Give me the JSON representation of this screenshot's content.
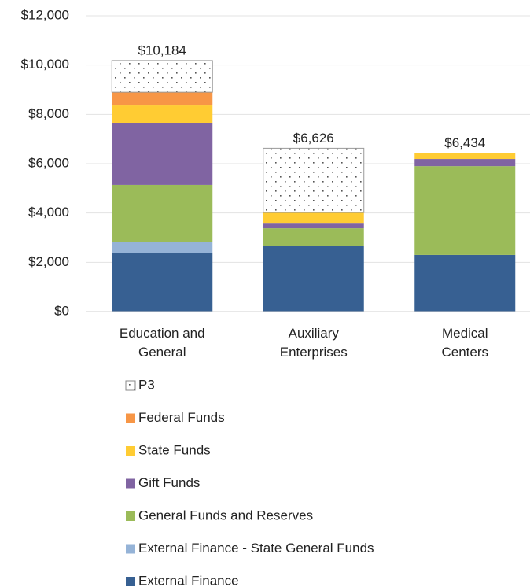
{
  "chart_data": {
    "type": "stacked_bar",
    "categories": [
      "Education and General",
      "Auxiliary Enterprises",
      "Medical Centers"
    ],
    "series": [
      {
        "name": "External Finance",
        "color": "#376092",
        "values": [
          2390,
          2650,
          2300
        ]
      },
      {
        "name": "External Finance - State  General Funds",
        "color": "#95b3d7",
        "values": [
          450,
          0,
          0
        ]
      },
      {
        "name": "General Funds and Reserves",
        "color": "#9bbb59",
        "values": [
          2300,
          730,
          3600
        ]
      },
      {
        "name": "Gift Funds",
        "color": "#8064a2",
        "values": [
          2520,
          190,
          290
        ]
      },
      {
        "name": "State Funds",
        "color": "#ffcc33",
        "values": [
          700,
          450,
          244
        ]
      },
      {
        "name": "Federal Funds",
        "color": "#f79646",
        "values": [
          540,
          0,
          0
        ]
      },
      {
        "name": "P3",
        "color": "#ffffff",
        "pattern": "dots",
        "values": [
          1284,
          2606,
          0
        ]
      }
    ],
    "totals": [
      10184,
      6626,
      6434
    ],
    "total_labels": [
      "$10,184",
      "$6,626",
      "$6,434"
    ],
    "ylim": [
      0,
      12000
    ],
    "yticks": [
      {
        "value": 0,
        "label": "$0"
      },
      {
        "value": 2000,
        "label": "$2,000"
      },
      {
        "value": 4000,
        "label": "$4,000"
      },
      {
        "value": 6000,
        "label": "$6,000"
      },
      {
        "value": 8000,
        "label": "$8,000"
      },
      {
        "value": 10000,
        "label": "$10,000"
      },
      {
        "value": 12000,
        "label": "$12,000"
      }
    ],
    "grid": true,
    "legend": "bottom"
  }
}
